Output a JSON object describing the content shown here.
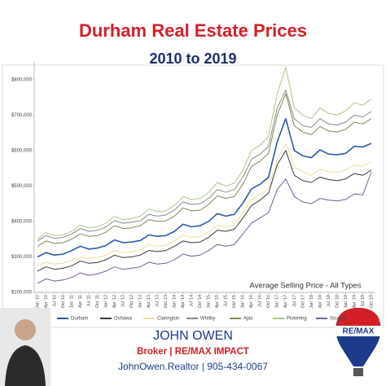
{
  "chart_data": {
    "type": "line",
    "title": "Durham Real Estate Prices",
    "subtitle": "2010 to 2019",
    "annotation": "Average Selling Price - All Types",
    "categories": [
      "Jan '10",
      "Apr '10",
      "Jul '10",
      "Oct '10",
      "Jan '11",
      "Apr '11",
      "Jul '11",
      "Oct '11",
      "Jan '12",
      "Apr '12",
      "Jul '12",
      "Oct '12",
      "Jan '13",
      "Apr '13",
      "Jul '13",
      "Oct '13",
      "Jan '14",
      "Apr '14",
      "Jul '14",
      "Oct '14",
      "Jan '15",
      "Apr '15",
      "Jul '15",
      "Oct '15",
      "Jan '16",
      "Apr '16",
      "Jul '16",
      "Oct '16",
      "Jan '17",
      "Apr '17",
      "Jul '17",
      "Oct '17",
      "Jan '18",
      "Apr '18",
      "Jul '18",
      "Oct '18",
      "Jan '19",
      "Apr '19",
      "Jul '19",
      "Oct '19"
    ],
    "series": [
      {
        "name": "Durham",
        "color": "#2e5aa8",
        "values": [
          300000,
          312000,
          305000,
          308000,
          318000,
          330000,
          322000,
          325000,
          332000,
          348000,
          340000,
          342000,
          346000,
          362000,
          358000,
          360000,
          372000,
          392000,
          385000,
          388000,
          400000,
          422000,
          415000,
          420000,
          452000,
          492000,
          505000,
          525000,
          625000,
          690000,
          600000,
          585000,
          580000,
          602000,
          590000,
          588000,
          592000,
          612000,
          610000,
          620000
        ]
      },
      {
        "name": "Oshawa",
        "color": "#3a3a3a",
        "values": [
          260000,
          272000,
          265000,
          268000,
          275000,
          288000,
          282000,
          284000,
          292000,
          305000,
          298000,
          300000,
          305000,
          318000,
          315000,
          318000,
          330000,
          345000,
          340000,
          342000,
          355000,
          375000,
          372000,
          378000,
          410000,
          445000,
          460000,
          480000,
          560000,
          600000,
          530000,
          515000,
          510000,
          525000,
          518000,
          515000,
          520000,
          535000,
          530000,
          545000
        ]
      },
      {
        "name": "Clarington",
        "color": "#ece09a",
        "values": [
          275000,
          285000,
          280000,
          282000,
          290000,
          300000,
          296000,
          298000,
          305000,
          318000,
          312000,
          315000,
          320000,
          335000,
          330000,
          332000,
          345000,
          362000,
          355000,
          358000,
          370000,
          390000,
          385000,
          390000,
          425000,
          462000,
          475000,
          495000,
          575000,
          620000,
          555000,
          540000,
          530000,
          548000,
          540000,
          538000,
          545000,
          560000,
          555000,
          570000
        ]
      },
      {
        "name": "Whitby",
        "color": "#8a8a8a",
        "values": [
          345000,
          360000,
          352000,
          355000,
          365000,
          380000,
          372000,
          375000,
          385000,
          402000,
          395000,
          398000,
          402000,
          420000,
          415000,
          418000,
          432000,
          455000,
          448000,
          450000,
          465000,
          490000,
          482000,
          490000,
          525000,
          575000,
          590000,
          612000,
          720000,
          770000,
          690000,
          670000,
          665000,
          690000,
          675000,
          672000,
          680000,
          700000,
          695000,
          710000
        ]
      },
      {
        "name": "Ajax",
        "color": "#7a8c50",
        "values": [
          330000,
          345000,
          338000,
          340000,
          350000,
          365000,
          358000,
          360000,
          370000,
          388000,
          380000,
          382000,
          388000,
          405000,
          400000,
          402000,
          415000,
          438000,
          430000,
          432000,
          448000,
          472000,
          465000,
          470000,
          505000,
          555000,
          570000,
          592000,
          700000,
          760000,
          670000,
          652000,
          645000,
          668000,
          655000,
          652000,
          660000,
          680000,
          675000,
          690000
        ]
      },
      {
        "name": "Pickering",
        "color": "#a9c98a",
        "values": [
          350000,
          368000,
          360000,
          362000,
          372000,
          390000,
          382000,
          385000,
          395000,
          415000,
          405000,
          408000,
          415000,
          435000,
          428000,
          430000,
          445000,
          470000,
          462000,
          465000,
          482000,
          510000,
          500000,
          508000,
          545000,
          600000,
          615000,
          640000,
          760000,
          835000,
          720000,
          700000,
          690000,
          720000,
          705000,
          700000,
          712000,
          735000,
          728000,
          745000
        ]
      },
      {
        "name": "Scugog",
        "color": "#7a5a9a",
        "values": [
          225000,
          238000,
          232000,
          235000,
          242000,
          255000,
          248000,
          252000,
          260000,
          272000,
          265000,
          268000,
          272000,
          285000,
          280000,
          282000,
          292000,
          308000,
          302000,
          305000,
          318000,
          335000,
          330000,
          335000,
          365000,
          395000,
          410000,
          425000,
          490000,
          520000,
          470000,
          455000,
          450000,
          465000,
          460000,
          458000,
          462000,
          478000,
          475000,
          540000
        ]
      }
    ],
    "ylim": [
      200000,
      850000
    ],
    "yticks": [
      {
        "value": 200000,
        "label": "$200,000"
      },
      {
        "value": 300000,
        "label": "$300,000"
      },
      {
        "value": 400000,
        "label": "$400,000"
      },
      {
        "value": 500000,
        "label": "$500,000"
      },
      {
        "value": 600000,
        "label": "$600,000"
      },
      {
        "value": 700000,
        "label": "$700,000"
      },
      {
        "value": 800000,
        "label": "$800,000"
      }
    ],
    "grid": false,
    "legend": "bottom"
  },
  "footer": {
    "name": "JOHN OWEN",
    "role": "Broker | RE/MAX IMPACT",
    "contact": "JohnOwen.Realtor | 905-434-0067",
    "logo": "RE/MAX"
  }
}
